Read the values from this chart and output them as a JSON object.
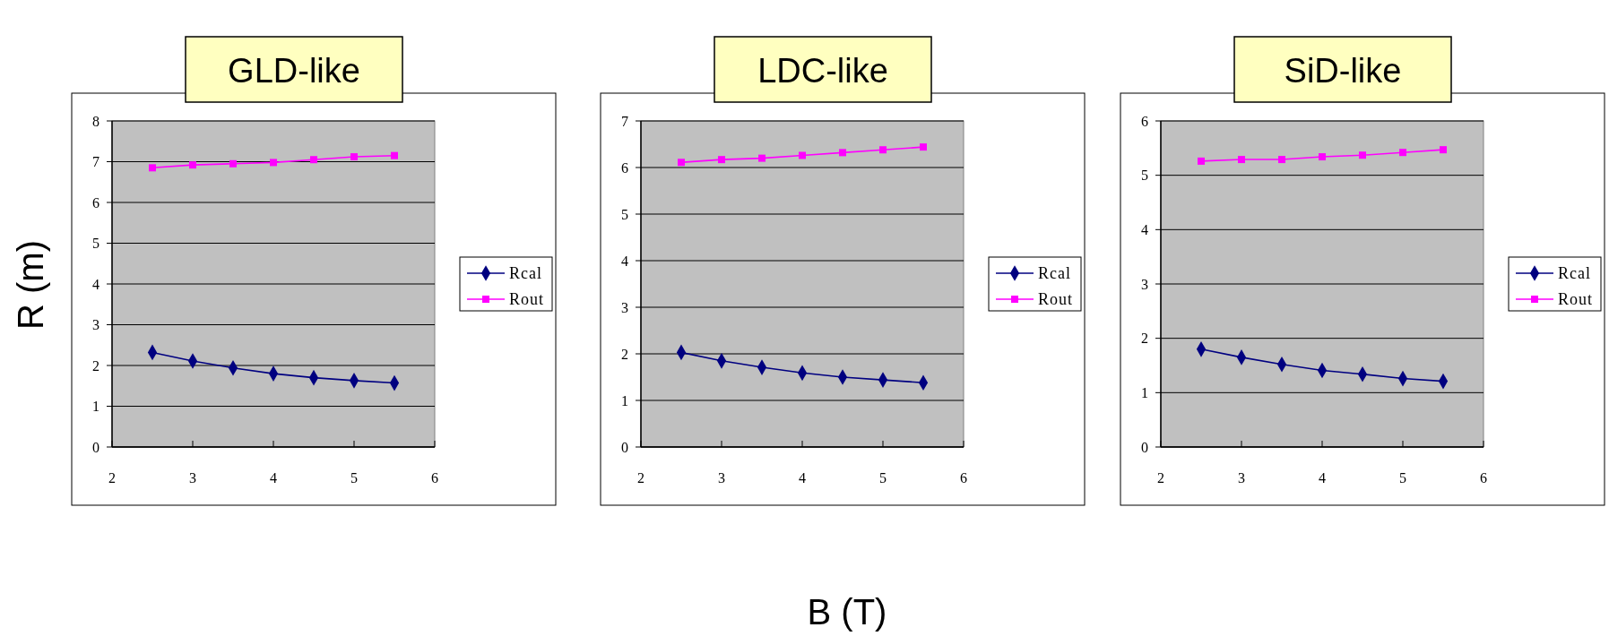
{
  "chart_data": [
    {
      "type": "line",
      "title": "GLD-like",
      "ylabel": "R (m)",
      "x": [
        2.5,
        3,
        3.5,
        4,
        4.5,
        5,
        5.5
      ],
      "xlim": [
        2,
        6
      ],
      "xticks": [
        2,
        3,
        4,
        5,
        6
      ],
      "ylim": [
        0,
        8
      ],
      "yticks": [
        0,
        1,
        2,
        3,
        4,
        5,
        6,
        7,
        8
      ],
      "grid": "y",
      "legend": "right",
      "line_style": "solid",
      "series": [
        {
          "name": "Rcal",
          "color": "#000080",
          "marker": "diamond",
          "values": [
            2.32,
            2.11,
            1.94,
            1.8,
            1.7,
            1.63,
            1.57
          ]
        },
        {
          "name": "Rout",
          "color": "#ff00ff",
          "marker": "square",
          "values": [
            6.85,
            6.92,
            6.95,
            6.98,
            7.05,
            7.12,
            7.15
          ]
        }
      ]
    },
    {
      "type": "line",
      "title": "LDC-like",
      "xlabel": "B (T)",
      "x": [
        2.5,
        3,
        3.5,
        4,
        4.5,
        5,
        5.5
      ],
      "xlim": [
        2,
        6
      ],
      "xticks": [
        2,
        3,
        4,
        5,
        6
      ],
      "ylim": [
        0,
        7
      ],
      "yticks": [
        0,
        1,
        2,
        3,
        4,
        5,
        6,
        7
      ],
      "grid": "y",
      "legend": "right",
      "line_style": "solid",
      "series": [
        {
          "name": "Rcal",
          "color": "#000080",
          "marker": "diamond",
          "values": [
            2.03,
            1.85,
            1.71,
            1.59,
            1.5,
            1.44,
            1.38
          ]
        },
        {
          "name": "Rout",
          "color": "#ff00ff",
          "marker": "square",
          "values": [
            6.11,
            6.17,
            6.2,
            6.26,
            6.32,
            6.38,
            6.44
          ]
        }
      ]
    },
    {
      "type": "line",
      "title": "SiD-like",
      "x": [
        2.5,
        3,
        3.5,
        4,
        4.5,
        5,
        5.5
      ],
      "xlim": [
        2,
        6
      ],
      "xticks": [
        2,
        3,
        4,
        5,
        6
      ],
      "ylim": [
        0,
        6
      ],
      "yticks": [
        0,
        1,
        2,
        3,
        4,
        5,
        6
      ],
      "grid": "y",
      "legend": "right",
      "line_style": "solid",
      "series": [
        {
          "name": "Rcal",
          "color": "#000080",
          "marker": "diamond",
          "values": [
            1.8,
            1.65,
            1.52,
            1.41,
            1.34,
            1.26,
            1.21
          ]
        },
        {
          "name": "Rout",
          "color": "#ff00ff",
          "marker": "square",
          "values": [
            5.26,
            5.29,
            5.29,
            5.34,
            5.37,
            5.42,
            5.47
          ]
        }
      ]
    }
  ]
}
